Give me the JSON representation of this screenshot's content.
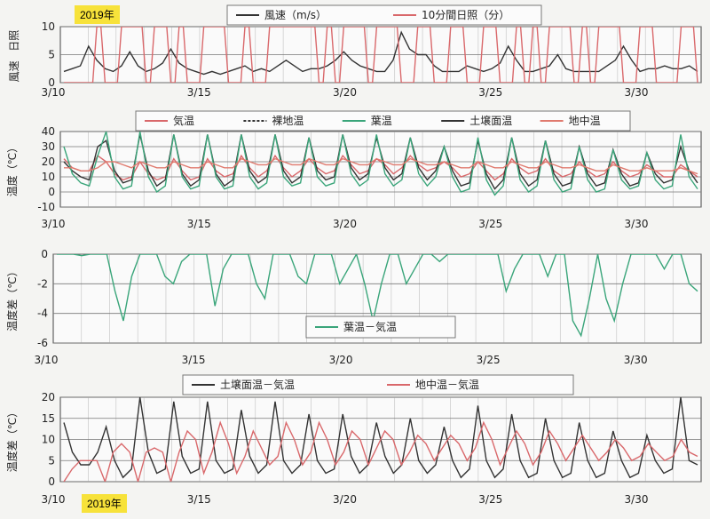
{
  "year_badge_top": "2019年",
  "year_badge_bottom": "2019年",
  "colors": {
    "black": "#333333",
    "red": "#d9686b",
    "green": "#3aa57a",
    "grid": "#9a9a9a"
  },
  "chart_data": [
    {
      "type": "line",
      "x_tick_labels": [
        "3/10",
        "3/15",
        "3/20",
        "3/25",
        "3/30"
      ],
      "ylabel_top": "日照",
      "ylabel_bottom": "風速",
      "y_ticks": [
        "10",
        "5",
        "0"
      ],
      "ylim": [
        0,
        10
      ],
      "legend": [
        "風速（m/s）",
        "10分間日照（分）"
      ],
      "series": [
        {
          "name": "風速（m/s）",
          "color": "black",
          "values": [
            2,
            2.5,
            3,
            6.5,
            4,
            2.5,
            2,
            3,
            5.5,
            3,
            2,
            2.5,
            3.5,
            6,
            3.5,
            2.5,
            2,
            1.5,
            2,
            1.5,
            2,
            2.5,
            3,
            2,
            2.5,
            2,
            3,
            4,
            3,
            2,
            2.5,
            2.5,
            3,
            4,
            5.5,
            4,
            3,
            2.5,
            2,
            2,
            4,
            9,
            6,
            5,
            5,
            3,
            2,
            2,
            2,
            3,
            2.5,
            2,
            2.5,
            3.5,
            6.5,
            4,
            2,
            2,
            2.5,
            3,
            5,
            2.5,
            2,
            2,
            2,
            2,
            3,
            4,
            6.5,
            4,
            2,
            2.5,
            2.5,
            3,
            2.5,
            2.5,
            3,
            2
          ]
        },
        {
          "name": "10分間日照（分）",
          "color": "red",
          "values": [
            0,
            0,
            0,
            0,
            10,
            0,
            0,
            10,
            10,
            10,
            0,
            10,
            10,
            0,
            10,
            0,
            0,
            10,
            10,
            10,
            0,
            0,
            10,
            0,
            0,
            10,
            10,
            10,
            10,
            10,
            10,
            0,
            10,
            0,
            10,
            10,
            10,
            0,
            10,
            10,
            10,
            0,
            0,
            10,
            10,
            0,
            0,
            10,
            10,
            0,
            0,
            10,
            10,
            0,
            0,
            10,
            0,
            10,
            0,
            10,
            10,
            10,
            0,
            10,
            0,
            10,
            10,
            10,
            0,
            0,
            10,
            10,
            0,
            0,
            0,
            10,
            10,
            0
          ]
        }
      ]
    },
    {
      "type": "line",
      "x_tick_labels": [
        "3/10",
        "3/15",
        "3/20",
        "3/25",
        "3/30"
      ],
      "ylabel": "温度（℃）",
      "y_ticks": [
        "40",
        "30",
        "20",
        "10",
        "0",
        "-10"
      ],
      "ylim": [
        -10,
        40
      ],
      "legend": [
        "気温",
        "裸地温",
        "葉温",
        "土壌面温",
        "地中温"
      ],
      "series": [
        {
          "name": "気温",
          "color": "red",
          "values": [
            22,
            16,
            14,
            14,
            24,
            20,
            12,
            8,
            10,
            20,
            12,
            8,
            10,
            22,
            14,
            8,
            10,
            22,
            14,
            10,
            12,
            24,
            16,
            10,
            14,
            24,
            16,
            10,
            14,
            22,
            16,
            12,
            14,
            24,
            18,
            12,
            14,
            22,
            18,
            12,
            16,
            24,
            18,
            14,
            16,
            20,
            16,
            10,
            12,
            20,
            14,
            8,
            12,
            22,
            16,
            12,
            14,
            22,
            14,
            10,
            12,
            20,
            14,
            10,
            12,
            20,
            14,
            10,
            12,
            18,
            14,
            10,
            10,
            18,
            14,
            10
          ]
        },
        {
          "name": "土壌面温",
          "color": "black",
          "values": [
            20,
            14,
            10,
            8,
            30,
            34,
            14,
            6,
            8,
            38,
            14,
            4,
            8,
            38,
            12,
            4,
            8,
            38,
            12,
            4,
            8,
            38,
            14,
            6,
            10,
            38,
            14,
            6,
            10,
            36,
            14,
            8,
            10,
            38,
            16,
            8,
            12,
            36,
            16,
            8,
            12,
            36,
            16,
            8,
            14,
            30,
            14,
            4,
            6,
            34,
            12,
            2,
            8,
            36,
            12,
            4,
            8,
            34,
            12,
            4,
            6,
            30,
            12,
            4,
            6,
            28,
            12,
            4,
            6,
            26,
            12,
            6,
            8,
            30,
            14,
            6
          ]
        },
        {
          "name": "葉温",
          "color": "green",
          "values": [
            30,
            12,
            6,
            4,
            24,
            40,
            10,
            2,
            4,
            40,
            10,
            0,
            4,
            38,
            10,
            2,
            4,
            38,
            10,
            2,
            4,
            38,
            10,
            2,
            6,
            38,
            10,
            4,
            6,
            36,
            10,
            4,
            6,
            38,
            12,
            4,
            8,
            38,
            12,
            4,
            8,
            36,
            12,
            4,
            10,
            30,
            10,
            0,
            2,
            36,
            8,
            -2,
            4,
            36,
            8,
            0,
            4,
            34,
            8,
            0,
            2,
            30,
            8,
            0,
            2,
            28,
            8,
            2,
            4,
            26,
            8,
            2,
            4,
            38,
            10,
            2
          ]
        },
        {
          "name": "地中温",
          "color": "red2",
          "values": [
            16,
            16,
            14,
            14,
            16,
            20,
            20,
            18,
            16,
            20,
            18,
            16,
            16,
            20,
            18,
            16,
            16,
            20,
            18,
            16,
            16,
            22,
            20,
            18,
            18,
            22,
            20,
            18,
            18,
            22,
            20,
            18,
            18,
            22,
            20,
            18,
            18,
            22,
            20,
            18,
            18,
            22,
            20,
            18,
            18,
            20,
            18,
            16,
            16,
            20,
            18,
            16,
            16,
            20,
            18,
            16,
            16,
            20,
            18,
            16,
            16,
            18,
            16,
            14,
            14,
            18,
            16,
            14,
            14,
            16,
            14,
            14,
            14,
            16,
            14,
            12
          ]
        }
      ]
    },
    {
      "type": "line",
      "x_tick_labels": [
        "3/10",
        "3/15",
        "3/20",
        "3/25",
        "3/30"
      ],
      "ylabel": "温度差（℃）",
      "y_ticks": [
        "0",
        "-2",
        "-4",
        "-6"
      ],
      "ylim": [
        -6,
        0
      ],
      "legend": [
        "葉温－気温"
      ],
      "series": [
        {
          "name": "葉温－気温",
          "color": "green",
          "values": [
            0,
            0,
            0,
            -0.1,
            0,
            0,
            0,
            -2.5,
            -4.5,
            -1.5,
            0,
            0,
            0,
            -1.5,
            -2,
            -0.5,
            0,
            0,
            0,
            -3.5,
            -1,
            0,
            0,
            0,
            -2,
            -3,
            0,
            0,
            0,
            -1.5,
            -2,
            0,
            0,
            0,
            -2,
            -1,
            0,
            -2,
            -4.5,
            -2,
            0,
            0,
            -2,
            -1,
            0,
            0,
            -0.5,
            0,
            0,
            0,
            0,
            0,
            0,
            0,
            -2.5,
            -1,
            0,
            0,
            0,
            -1.5,
            0,
            0,
            -4.5,
            -5.5,
            -3,
            0,
            -3,
            -4.5,
            -2,
            0,
            0,
            0,
            0,
            -1,
            0,
            0,
            -2,
            -2.5
          ]
        }
      ]
    },
    {
      "type": "line",
      "x_tick_labels": [
        "3/10",
        "3/15",
        "3/20",
        "3/25",
        "3/30"
      ],
      "ylabel": "温度差（℃）",
      "y_ticks": [
        "20",
        "15",
        "10",
        "5",
        "0"
      ],
      "ylim": [
        0,
        20
      ],
      "legend": [
        "土壌面温－気温",
        "地中温－気温"
      ],
      "series": [
        {
          "name": "土壌面温－気温",
          "color": "black",
          "values": [
            14,
            7,
            4,
            4,
            7,
            13,
            5,
            1,
            3,
            20,
            7,
            2,
            3,
            19,
            6,
            2,
            3,
            19,
            5,
            2,
            3,
            17,
            6,
            2,
            4,
            19,
            5,
            2,
            4,
            16,
            5,
            2,
            3,
            16,
            6,
            2,
            4,
            14,
            6,
            2,
            4,
            15,
            5,
            2,
            4,
            13,
            5,
            1,
            3,
            18,
            5,
            1,
            3,
            16,
            5,
            1,
            2,
            15,
            5,
            1,
            2,
            14,
            5,
            1,
            2,
            12,
            5,
            1,
            2,
            11,
            5,
            2,
            3,
            20,
            5,
            4
          ]
        },
        {
          "name": "地中温－気温",
          "color": "red",
          "values": [
            0,
            3,
            5,
            5,
            5,
            0,
            7,
            9,
            7,
            0,
            7,
            8,
            7,
            0,
            7,
            12,
            10,
            2,
            7,
            14,
            9,
            2,
            6,
            12,
            8,
            4,
            6,
            14,
            10,
            4,
            7,
            14,
            10,
            4,
            7,
            12,
            10,
            4,
            8,
            12,
            10,
            4,
            7,
            11,
            9,
            5,
            8,
            11,
            9,
            5,
            8,
            14,
            10,
            4,
            8,
            12,
            9,
            4,
            7,
            12,
            9,
            5,
            8,
            11,
            8,
            5,
            7,
            10,
            8,
            5,
            6,
            9,
            7,
            5,
            6,
            10,
            7,
            6
          ]
        }
      ]
    }
  ]
}
